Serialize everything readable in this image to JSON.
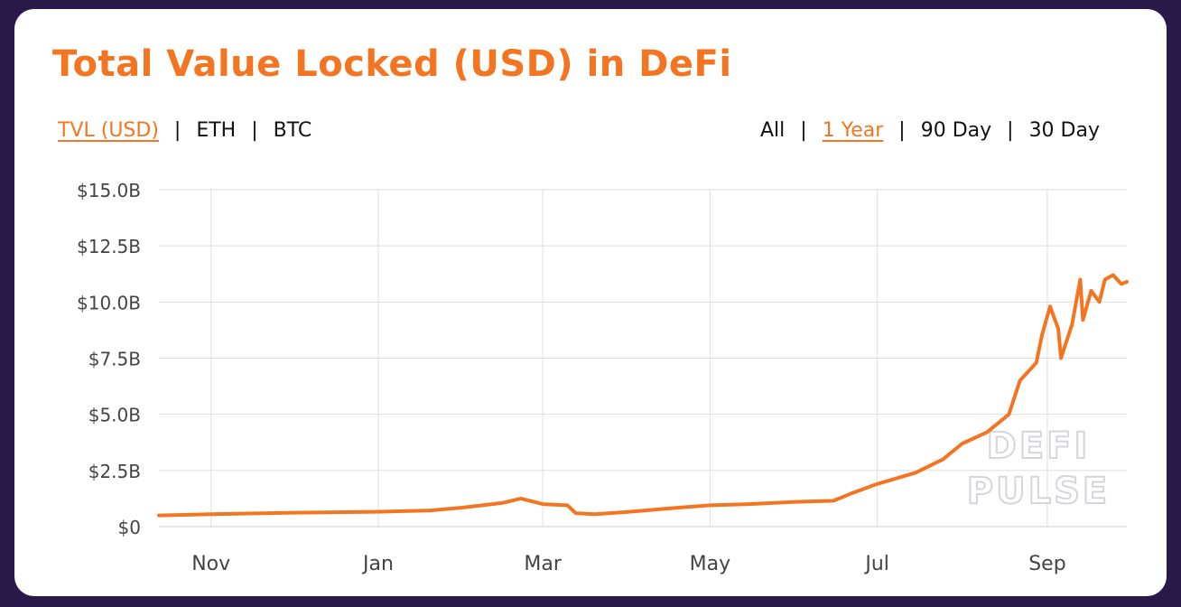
{
  "title": "Total Value Locked (USD) in DeFi",
  "metric_options": [
    {
      "label": "TVL (USD)",
      "active": true
    },
    {
      "label": "ETH",
      "active": false
    },
    {
      "label": "BTC",
      "active": false
    }
  ],
  "range_options": [
    {
      "label": "All",
      "active": false
    },
    {
      "label": "1 Year",
      "active": true
    },
    {
      "label": "90 Day",
      "active": false
    },
    {
      "label": "30 Day",
      "active": false
    }
  ],
  "separator": "|",
  "watermark": [
    "DEFI",
    "PULSE"
  ],
  "colors": {
    "accent": "#f47521",
    "line": "#f47521",
    "grid": "#dddddd",
    "background": "#2a1a4a"
  },
  "chart_data": {
    "type": "line",
    "title": "",
    "xlabel": "",
    "ylabel": "",
    "grid": true,
    "legend": "none",
    "x_ticks": [
      "Nov",
      "Jan",
      "Mar",
      "May",
      "Jul",
      "Sep"
    ],
    "y_ticks": [
      "$0",
      "$2.5B",
      "$5.0B",
      "$7.5B",
      "$10.0B",
      "$12.5B",
      "$15.0B"
    ],
    "ylim_billions": [
      0,
      15
    ],
    "x_range": [
      "2019-10-13",
      "2020-09-30"
    ],
    "series": [
      {
        "values": [
          [
            "2019-10-13",
            0.5
          ],
          [
            "2019-11-01",
            0.55
          ],
          [
            "2019-12-01",
            0.62
          ],
          [
            "2019-12-31",
            0.66
          ],
          [
            "2020-01-20",
            0.72
          ],
          [
            "2020-02-01",
            0.85
          ],
          [
            "2020-02-15",
            1.05
          ],
          [
            "2020-02-22",
            1.25
          ],
          [
            "2020-03-01",
            1.0
          ],
          [
            "2020-03-10",
            0.95
          ],
          [
            "2020-03-13",
            0.6
          ],
          [
            "2020-03-20",
            0.55
          ],
          [
            "2020-04-01",
            0.65
          ],
          [
            "2020-04-15",
            0.8
          ],
          [
            "2020-05-01",
            0.95
          ],
          [
            "2020-05-15",
            1.0
          ],
          [
            "2020-06-01",
            1.1
          ],
          [
            "2020-06-15",
            1.15
          ],
          [
            "2020-06-22",
            1.5
          ],
          [
            "2020-07-01",
            1.9
          ],
          [
            "2020-07-15",
            2.4
          ],
          [
            "2020-07-25",
            3.0
          ],
          [
            "2020-08-01",
            3.7
          ],
          [
            "2020-08-10",
            4.2
          ],
          [
            "2020-08-18",
            5.0
          ],
          [
            "2020-08-22",
            6.5
          ],
          [
            "2020-08-28",
            7.3
          ],
          [
            "2020-08-30",
            8.5
          ],
          [
            "2020-09-02",
            9.8
          ],
          [
            "2020-09-05",
            8.8
          ],
          [
            "2020-09-06",
            7.5
          ],
          [
            "2020-09-10",
            9.0
          ],
          [
            "2020-09-13",
            11.0
          ],
          [
            "2020-09-14",
            9.2
          ],
          [
            "2020-09-17",
            10.5
          ],
          [
            "2020-09-20",
            10.0
          ],
          [
            "2020-09-22",
            11.0
          ],
          [
            "2020-09-25",
            11.2
          ],
          [
            "2020-09-28",
            10.8
          ],
          [
            "2020-09-30",
            10.9
          ]
        ]
      }
    ]
  }
}
